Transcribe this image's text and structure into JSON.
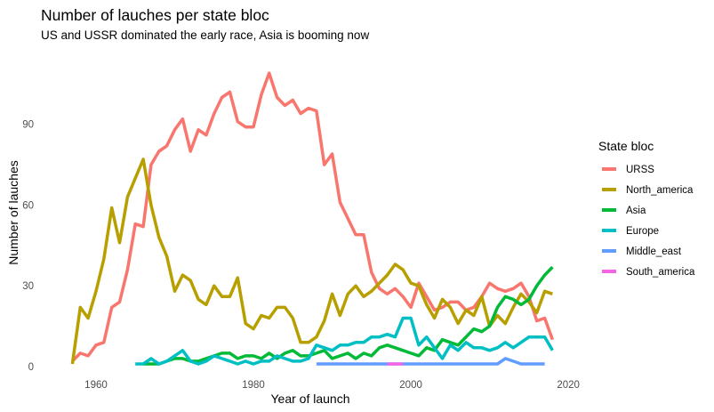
{
  "chart_data": {
    "type": "line",
    "title": "Number of lauches per state bloc",
    "subtitle": "US and USSR dominated the early race, Asia is booming now",
    "xlabel": "Year of launch",
    "ylabel": "Number of lauches",
    "xlim": [
      1953,
      2021
    ],
    "ylim": [
      0,
      118
    ],
    "x_ticks": [
      1960,
      1980,
      2000,
      2020
    ],
    "y_ticks": [
      0,
      30,
      60,
      90
    ],
    "grid": false,
    "legend_title": "State bloc",
    "legend_position": "right",
    "series": [
      {
        "name": "URSS",
        "color": "#F8766D",
        "x": [
          1957,
          1958,
          1959,
          1960,
          1961,
          1962,
          1963,
          1964,
          1965,
          1966,
          1967,
          1968,
          1969,
          1970,
          1971,
          1972,
          1973,
          1974,
          1975,
          1976,
          1977,
          1978,
          1979,
          1980,
          1981,
          1982,
          1983,
          1984,
          1985,
          1986,
          1987,
          1988,
          1989,
          1990,
          1991,
          1992,
          1993,
          1994,
          1995,
          1996,
          1997,
          1998,
          1999,
          2000,
          2001,
          2002,
          2003,
          2004,
          2005,
          2006,
          2007,
          2008,
          2009,
          2010,
          2011,
          2012,
          2013,
          2014,
          2015,
          2016,
          2017,
          2018
        ],
        "y": [
          2,
          5,
          4,
          8,
          9,
          22,
          24,
          36,
          53,
          52,
          75,
          80,
          82,
          88,
          92,
          80,
          88,
          86,
          94,
          100,
          102,
          91,
          89,
          89,
          101,
          109,
          100,
          97,
          99,
          94,
          96,
          95,
          75,
          79,
          61,
          55,
          49,
          49,
          35,
          29,
          27,
          29,
          26,
          22,
          31,
          26,
          21,
          22,
          24,
          24,
          21,
          22,
          26,
          31,
          29,
          28,
          29,
          31,
          26,
          17,
          18,
          10
        ]
      },
      {
        "name": "North_america",
        "color": "#B79F00",
        "x": [
          1957,
          1958,
          1959,
          1960,
          1961,
          1962,
          1963,
          1964,
          1965,
          1966,
          1967,
          1968,
          1969,
          1970,
          1971,
          1972,
          1973,
          1974,
          1975,
          1976,
          1977,
          1978,
          1979,
          1980,
          1981,
          1982,
          1983,
          1984,
          1985,
          1986,
          1987,
          1988,
          1989,
          1990,
          1991,
          1992,
          1993,
          1994,
          1995,
          1996,
          1997,
          1998,
          1999,
          2000,
          2001,
          2002,
          2003,
          2004,
          2005,
          2006,
          2007,
          2008,
          2009,
          2010,
          2011,
          2012,
          2013,
          2014,
          2015,
          2016,
          2017,
          2018
        ],
        "y": [
          1,
          22,
          18,
          28,
          40,
          59,
          46,
          63,
          70,
          77,
          60,
          48,
          41,
          28,
          34,
          32,
          25,
          23,
          30,
          26,
          26,
          33,
          16,
          14,
          19,
          18,
          22,
          22,
          18,
          9,
          9,
          11,
          17,
          27,
          19,
          27,
          30,
          26,
          28,
          31,
          34,
          38,
          36,
          31,
          30,
          23,
          18,
          25,
          22,
          16,
          21,
          19,
          26,
          15,
          19,
          16,
          22,
          27,
          24,
          20,
          28,
          27
        ]
      },
      {
        "name": "Asia",
        "color": "#00BA38",
        "x": [
          1966,
          1967,
          1968,
          1969,
          1970,
          1971,
          1972,
          1973,
          1974,
          1975,
          1976,
          1977,
          1978,
          1979,
          1980,
          1981,
          1982,
          1983,
          1984,
          1985,
          1986,
          1987,
          1988,
          1989,
          1990,
          1991,
          1992,
          1993,
          1994,
          1995,
          1996,
          1997,
          1998,
          1999,
          2000,
          2001,
          2002,
          2003,
          2004,
          2005,
          2006,
          2007,
          2008,
          2009,
          2010,
          2011,
          2012,
          2013,
          2014,
          2015,
          2016,
          2017,
          2018
        ],
        "y": [
          1,
          1,
          1,
          2,
          3,
          3,
          2,
          2,
          3,
          4,
          5,
          5,
          3,
          4,
          4,
          3,
          5,
          3,
          5,
          6,
          4,
          4,
          5,
          6,
          3,
          4,
          5,
          3,
          5,
          4,
          7,
          8,
          7,
          6,
          5,
          4,
          7,
          6,
          10,
          9,
          8,
          11,
          14,
          13,
          15,
          22,
          26,
          25,
          23,
          25,
          30,
          34,
          37
        ]
      },
      {
        "name": "Europe",
        "color": "#00BFC4",
        "x": [
          1965,
          1966,
          1967,
          1968,
          1969,
          1970,
          1971,
          1972,
          1973,
          1974,
          1975,
          1976,
          1977,
          1978,
          1979,
          1980,
          1981,
          1982,
          1983,
          1984,
          1985,
          1986,
          1987,
          1988,
          1989,
          1990,
          1991,
          1992,
          1993,
          1994,
          1995,
          1996,
          1997,
          1998,
          1999,
          2000,
          2001,
          2002,
          2003,
          2004,
          2005,
          2006,
          2007,
          2008,
          2009,
          2010,
          2011,
          2012,
          2013,
          2014,
          2015,
          2016,
          2017,
          2018
        ],
        "y": [
          1,
          1,
          3,
          1,
          2,
          4,
          6,
          2,
          1,
          2,
          4,
          3,
          2,
          1,
          2,
          1,
          2,
          2,
          4,
          3,
          2,
          2,
          3,
          8,
          7,
          6,
          8,
          8,
          9,
          9,
          11,
          11,
          12,
          11,
          18,
          18,
          8,
          11,
          7,
          3,
          8,
          6,
          9,
          7,
          7,
          6,
          7,
          9,
          7,
          9,
          11,
          11,
          11,
          6
        ]
      },
      {
        "name": "Middle_east",
        "color": "#619CFF",
        "x": [
          1988,
          1989,
          1990,
          1991,
          1992,
          1993,
          1994,
          1995,
          1996,
          1997,
          1998,
          1999,
          2000,
          2001,
          2002,
          2003,
          2004,
          2005,
          2006,
          2007,
          2008,
          2009,
          2010,
          2011,
          2012,
          2013,
          2014,
          2015,
          2016,
          2017
        ],
        "y": [
          1,
          1,
          1,
          1,
          1,
          1,
          1,
          1,
          1,
          1,
          1,
          1,
          1,
          1,
          1,
          1,
          1,
          1,
          1,
          1,
          1,
          1,
          1,
          1,
          3,
          2,
          1,
          1,
          1,
          1
        ]
      },
      {
        "name": "South_america",
        "color": "#F564E3",
        "x": [
          1997,
          1998,
          1999
        ],
        "y": [
          1,
          1,
          1
        ]
      }
    ]
  }
}
